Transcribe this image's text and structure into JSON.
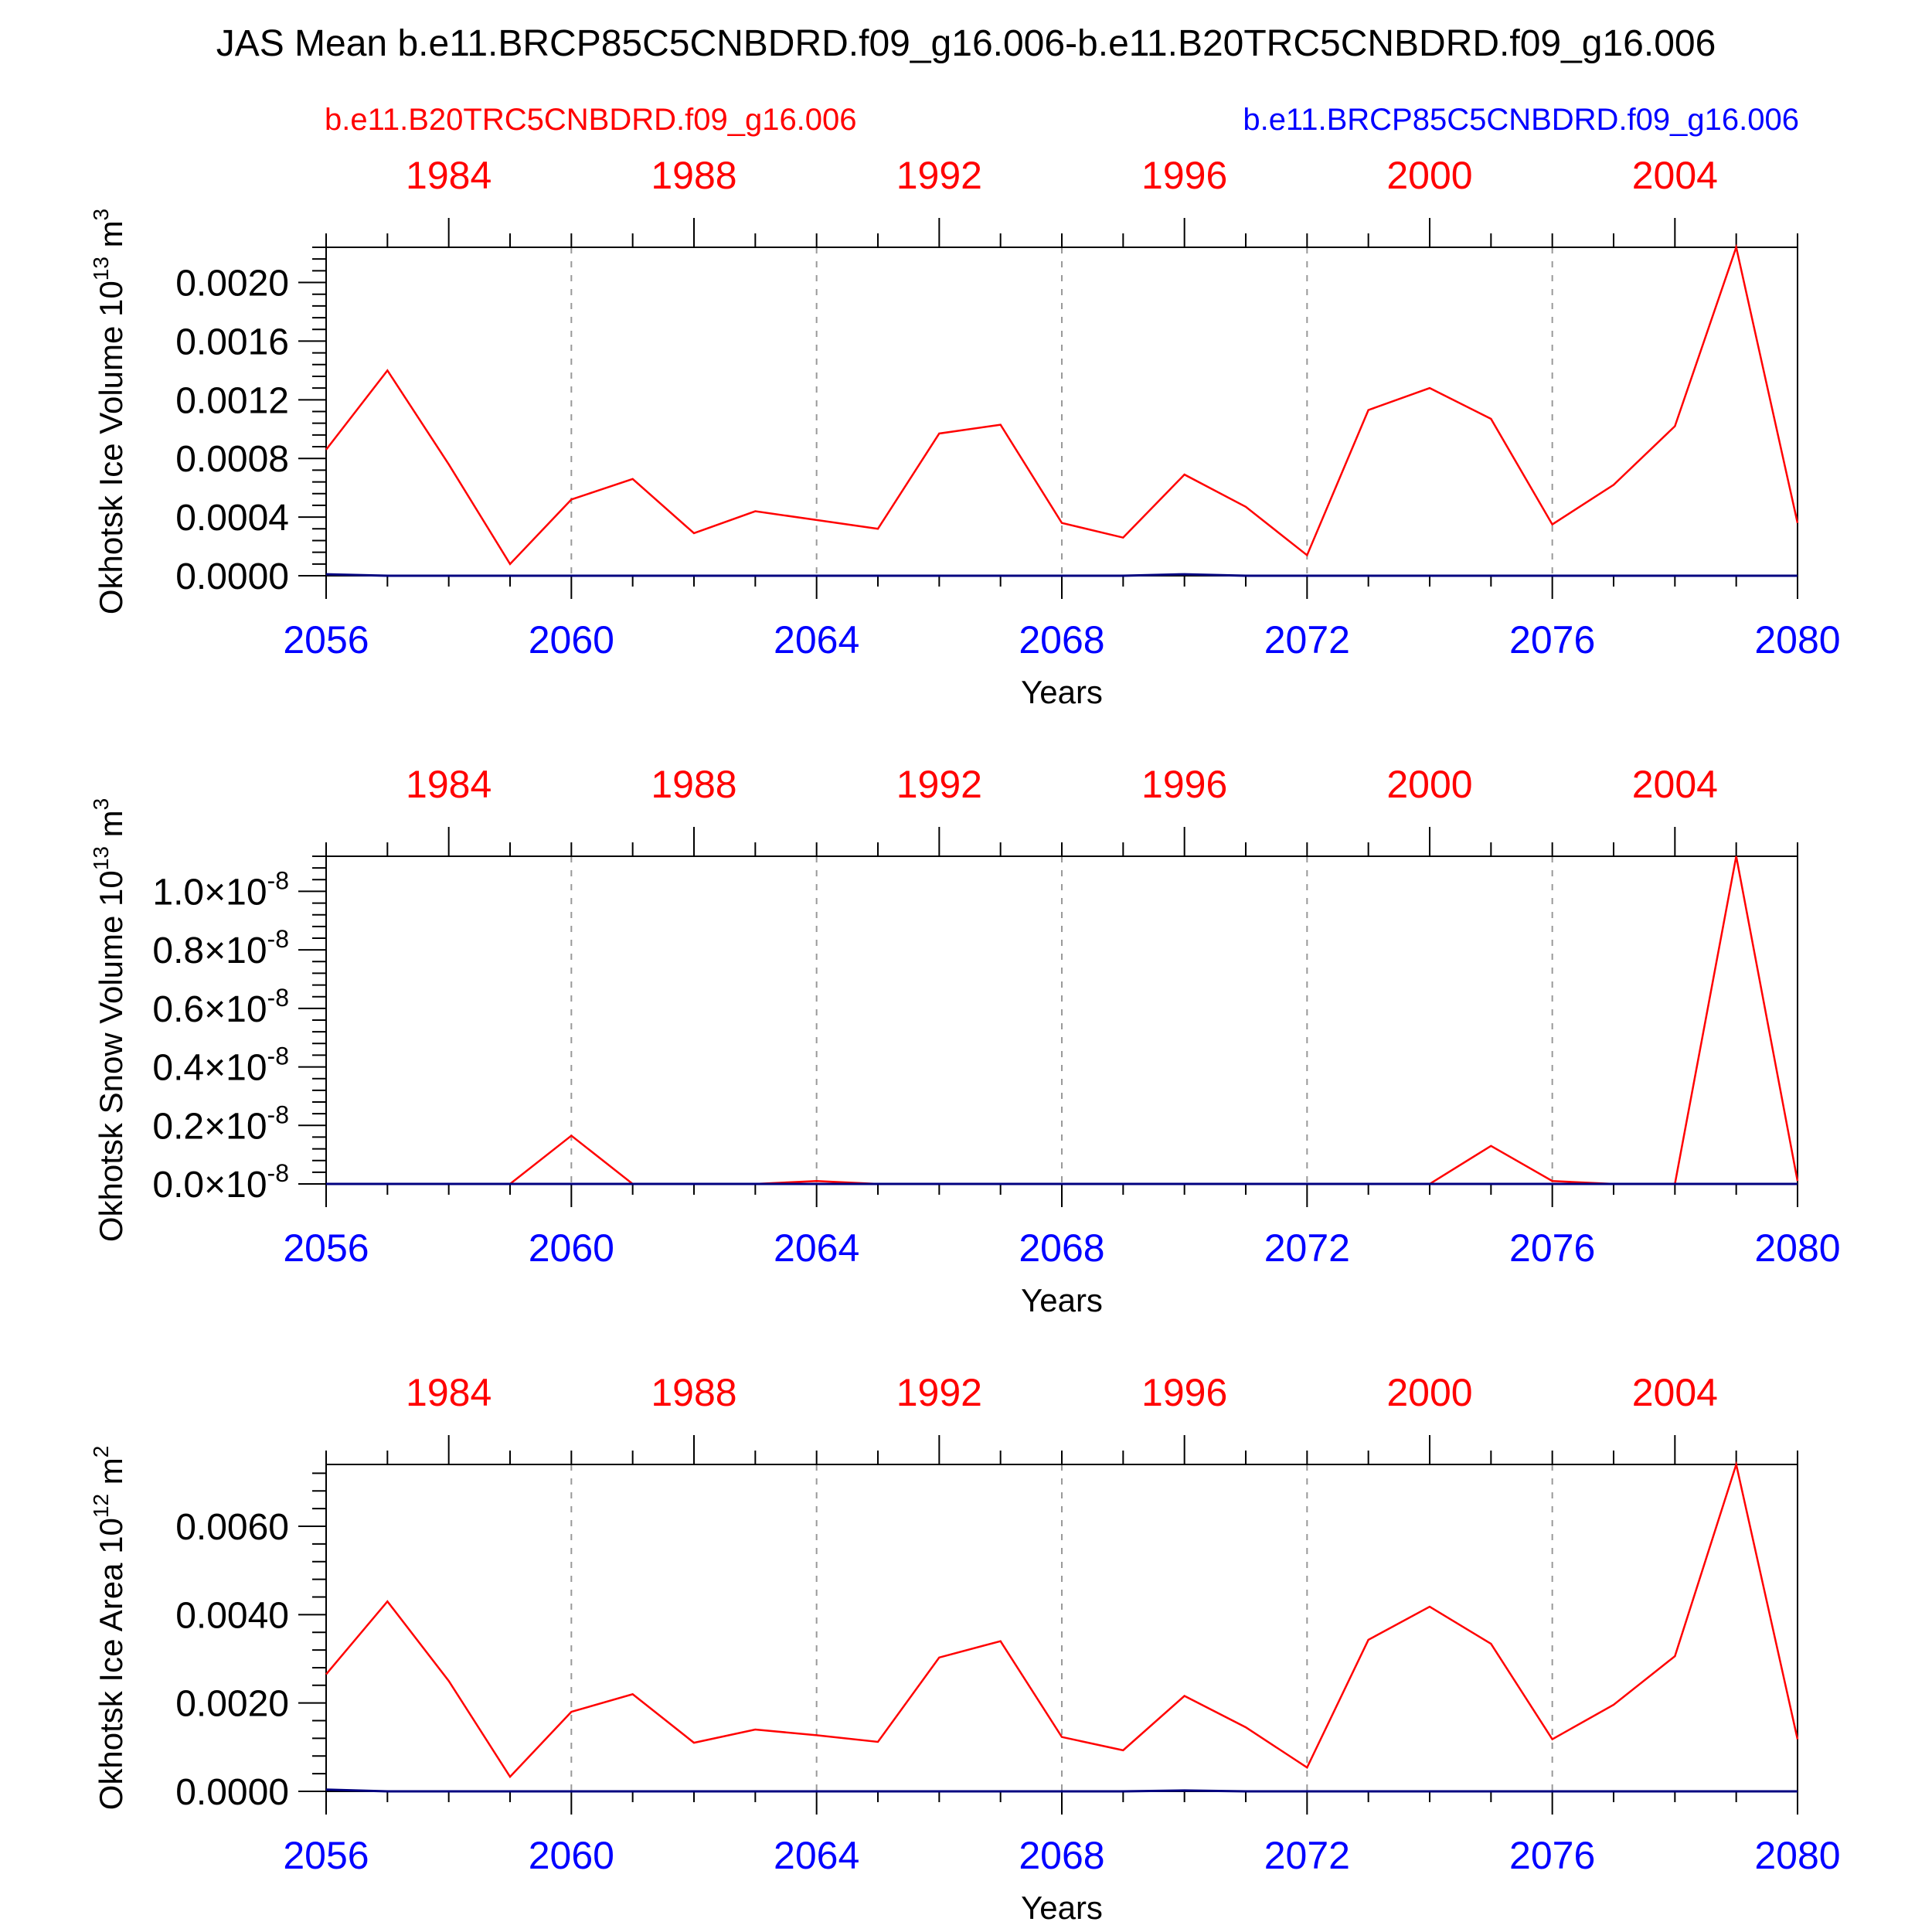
{
  "title": "JAS Mean b.e11.BRCP85C5CNBDRD.f09_g16.006-b.e11.B20TRC5CNBDRD.f09_g16.006",
  "legend": {
    "left_label": "b.e11.B20TRC5CNBDRD.f09_g16.006",
    "left_color": "#ff0000",
    "right_label": "b.e11.BRCP85C5CNBDRD.f09_g16.006",
    "right_color": "#0000ff"
  },
  "colors": {
    "series_red": "#ff0000",
    "series_blue": "#000080",
    "bottom_ticks": "#0000ff",
    "top_ticks": "#ff0000",
    "grid": "#999999"
  },
  "chart_data": [
    {
      "type": "line",
      "ylabel_main": "Okhotsk Ice Volume 10",
      "ylabel_exp": "13",
      "ylabel_unit": " m",
      "ylabel_unit_exp": "3",
      "xlabel": "Years",
      "xlim": [
        2056,
        2080
      ],
      "ylim": [
        0,
        0.00224
      ],
      "yticks": [
        {
          "v": 0.0,
          "label": "0.0000"
        },
        {
          "v": 0.0004,
          "label": "0.0004"
        },
        {
          "v": 0.0008,
          "label": "0.0008"
        },
        {
          "v": 0.0012,
          "label": "0.0012"
        },
        {
          "v": 0.0016,
          "label": "0.0016"
        },
        {
          "v": 0.002,
          "label": "0.0020"
        }
      ],
      "xticks_bottom": [
        "2056",
        "2060",
        "2064",
        "2068",
        "2072",
        "2076",
        "2080"
      ],
      "xticks_top": [
        "1984",
        "1988",
        "1992",
        "1996",
        "2000",
        "2004"
      ],
      "x": [
        2056,
        2057,
        2058,
        2059,
        2060,
        2061,
        2062,
        2063,
        2064,
        2065,
        2066,
        2067,
        2068,
        2069,
        2070,
        2071,
        2072,
        2073,
        2074,
        2075,
        2076,
        2077,
        2078,
        2079,
        2080
      ],
      "series": [
        {
          "color": "#ff0000",
          "values": [
            0.00086,
            0.0014,
            0.00076,
            8e-05,
            0.00052,
            0.00066,
            0.00029,
            0.00044,
            0.00038,
            0.00032,
            0.00097,
            0.00103,
            0.00036,
            0.00026,
            0.00069,
            0.00047,
            0.00014,
            0.00113,
            0.00128,
            0.00107,
            0.00035,
            0.00062,
            0.00102,
            0.00224,
            0.00036
          ]
        },
        {
          "color": "#000080",
          "values": [
            1e-05,
            0.0,
            0.0,
            0.0,
            0.0,
            0.0,
            0.0,
            0.0,
            0.0,
            0.0,
            0.0,
            0.0,
            0.0,
            0.0,
            1e-05,
            0.0,
            0.0,
            0.0,
            0.0,
            0.0,
            0.0,
            0.0,
            0.0,
            0.0,
            0.0
          ]
        }
      ]
    },
    {
      "type": "line",
      "ylabel_main": "Okhotsk Snow Volume 10",
      "ylabel_exp": "13",
      "ylabel_unit": " m",
      "ylabel_unit_exp": "3",
      "xlabel": "Years",
      "xlim": [
        2056,
        2080
      ],
      "ylim": [
        0,
        1.12
      ],
      "yticks": [
        {
          "v": 0.0,
          "label": "0.0",
          "mult": "×10",
          "exp": "-8"
        },
        {
          "v": 0.2,
          "label": "0.2",
          "mult": "×10",
          "exp": "-8"
        },
        {
          "v": 0.4,
          "label": "0.4",
          "mult": "×10",
          "exp": "-8"
        },
        {
          "v": 0.6,
          "label": "0.6",
          "mult": "×10",
          "exp": "-8"
        },
        {
          "v": 0.8,
          "label": "0.8",
          "mult": "×10",
          "exp": "-8"
        },
        {
          "v": 1.0,
          "label": "1.0",
          "mult": "×10",
          "exp": "-8"
        }
      ],
      "xticks_bottom": [
        "2056",
        "2060",
        "2064",
        "2068",
        "2072",
        "2076",
        "2080"
      ],
      "xticks_top": [
        "1984",
        "1988",
        "1992",
        "1996",
        "2000",
        "2004"
      ],
      "x": [
        2056,
        2057,
        2058,
        2059,
        2060,
        2061,
        2062,
        2063,
        2064,
        2065,
        2066,
        2067,
        2068,
        2069,
        2070,
        2071,
        2072,
        2073,
        2074,
        2075,
        2076,
        2077,
        2078,
        2079,
        2080
      ],
      "series": [
        {
          "color": "#ff0000",
          "values": [
            0,
            0,
            0,
            0,
            0.165,
            0,
            0,
            0,
            0.01,
            0,
            0,
            0,
            0,
            0,
            0,
            0,
            0,
            0,
            0,
            0.13,
            0.01,
            0,
            0,
            1.12,
            0.01
          ]
        },
        {
          "color": "#000080",
          "values": [
            0,
            0,
            0,
            0,
            0,
            0,
            0,
            0,
            0,
            0,
            0,
            0,
            0,
            0,
            0,
            0,
            0,
            0,
            0,
            0,
            0,
            0,
            0,
            0,
            0
          ]
        }
      ]
    },
    {
      "type": "line",
      "ylabel_main": "Okhotsk Ice Area 10",
      "ylabel_exp": "12",
      "ylabel_unit": " m",
      "ylabel_unit_exp": "2",
      "xlabel": "Years",
      "xlim": [
        2056,
        2080
      ],
      "ylim": [
        0,
        0.0074
      ],
      "yticks": [
        {
          "v": 0.0,
          "label": "0.0000"
        },
        {
          "v": 0.002,
          "label": "0.0020"
        },
        {
          "v": 0.004,
          "label": "0.0040"
        },
        {
          "v": 0.006,
          "label": "0.0060"
        }
      ],
      "xticks_bottom": [
        "2056",
        "2060",
        "2064",
        "2068",
        "2072",
        "2076",
        "2080"
      ],
      "xticks_top": [
        "1984",
        "1988",
        "1992",
        "1996",
        "2000",
        "2004"
      ],
      "x": [
        2056,
        2057,
        2058,
        2059,
        2060,
        2061,
        2062,
        2063,
        2064,
        2065,
        2066,
        2067,
        2068,
        2069,
        2070,
        2071,
        2072,
        2073,
        2074,
        2075,
        2076,
        2077,
        2078,
        2079,
        2080
      ],
      "series": [
        {
          "color": "#ff0000",
          "values": [
            0.00265,
            0.0043,
            0.0025,
            0.00033,
            0.0018,
            0.0022,
            0.0011,
            0.0014,
            0.00127,
            0.00112,
            0.00303,
            0.0034,
            0.00123,
            0.00093,
            0.00216,
            0.00145,
            0.00054,
            0.00343,
            0.00418,
            0.00334,
            0.00118,
            0.00196,
            0.00306,
            0.0074,
            0.00118
          ]
        },
        {
          "color": "#000080",
          "values": [
            4e-05,
            0.0,
            0.0,
            0.0,
            0.0,
            0.0,
            0.0,
            0.0,
            0.0,
            0.0,
            0.0,
            0.0,
            0.0,
            0.0,
            2e-05,
            0.0,
            0.0,
            0.0,
            0.0,
            0.0,
            0.0,
            0.0,
            0.0,
            0.0,
            0.0
          ]
        }
      ]
    }
  ]
}
